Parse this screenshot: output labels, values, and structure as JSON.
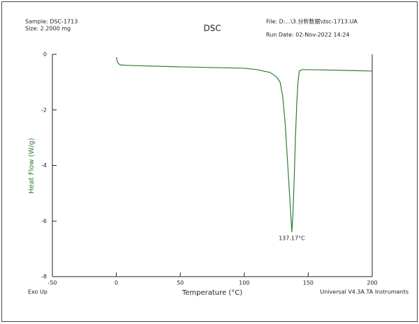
{
  "chart_data": {
    "type": "line",
    "title": "DSC",
    "sample": "Sample: DSC-1713",
    "size": "Size:  2.2000 mg",
    "file": "File: D:...\\3.分析数据\\dsc-1713.UA",
    "run_date": "Run Date: 02-Nov-2022 14:24",
    "corner_left": "Exo Up",
    "corner_right": "Universal V4.3A TA Instruments",
    "x_label": "Temperature (°C)",
    "y_label": "Heat Flow (W/g)",
    "annotation": {
      "text": "137.17°C",
      "x": 137.17,
      "y": -6.4
    },
    "x": [
      0,
      1,
      3,
      10,
      50,
      100,
      110,
      120,
      125,
      128,
      130,
      132,
      134,
      136,
      137.17,
      138,
      139,
      140,
      141,
      142,
      143,
      145,
      150,
      200
    ],
    "series": [
      {
        "name": "Heat Flow",
        "color": "#2e7d32",
        "values": [
          -0.1,
          -0.3,
          -0.38,
          -0.4,
          -0.45,
          -0.5,
          -0.55,
          -0.65,
          -0.8,
          -1.0,
          -1.5,
          -2.5,
          -4.0,
          -5.5,
          -6.4,
          -5.8,
          -4.5,
          -3.0,
          -1.8,
          -1.0,
          -0.6,
          -0.55,
          -0.55,
          -0.6
        ]
      }
    ],
    "xlim": [
      -50,
      200
    ],
    "xticks": [
      -50,
      0,
      50,
      100,
      150,
      200
    ],
    "ylim": [
      -8,
      0
    ],
    "yticks": [
      0,
      -2,
      -4,
      -6,
      -8
    ]
  }
}
